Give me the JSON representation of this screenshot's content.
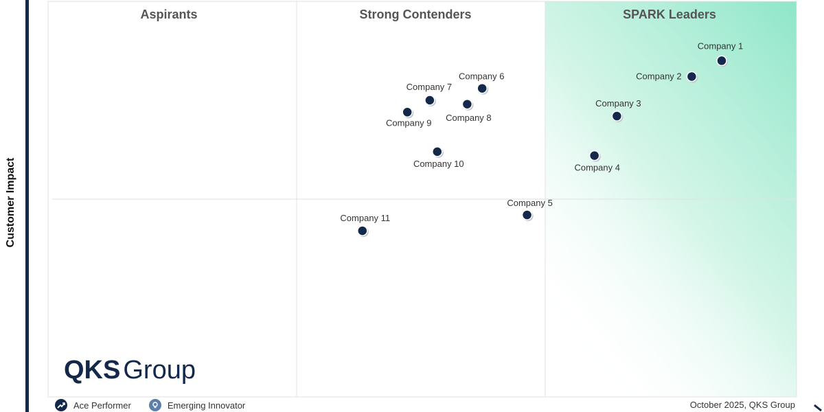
{
  "y_axis_label": "Customer Impact",
  "quadrants": [
    "Aspirants",
    "Strong Contenders",
    "SPARK Leaders"
  ],
  "logo": {
    "part1": "QKS",
    "part2": "Group"
  },
  "legend": [
    {
      "label": "Ace Performer",
      "icon": "trend-up-icon"
    },
    {
      "label": "Emerging Innovator",
      "icon": "lightbulb-icon"
    }
  ],
  "footer": "October 2025, QKS Group",
  "colors": {
    "dot": "#14284b",
    "leader_gradient": "#9fe8cf",
    "axis_bar": "#14284b"
  },
  "chart_data": {
    "type": "scatter",
    "ylabel": "Customer Impact",
    "grid": true,
    "points": [
      {
        "label": "Company 1",
        "x": 0.9,
        "y": 0.85
      },
      {
        "label": "Company 2",
        "x": 0.86,
        "y": 0.81
      },
      {
        "label": "Company 3",
        "x": 0.76,
        "y": 0.71
      },
      {
        "label": "Company 4",
        "x": 0.73,
        "y": 0.61
      },
      {
        "label": "Company 5",
        "x": 0.64,
        "y": 0.46
      },
      {
        "label": "Company 6",
        "x": 0.58,
        "y": 0.78
      },
      {
        "label": "Company 7",
        "x": 0.51,
        "y": 0.75
      },
      {
        "label": "Company 8",
        "x": 0.56,
        "y": 0.74
      },
      {
        "label": "Company 9",
        "x": 0.48,
        "y": 0.72
      },
      {
        "label": "Company 10",
        "x": 0.52,
        "y": 0.62
      },
      {
        "label": "Company 11",
        "x": 0.42,
        "y": 0.42
      }
    ]
  }
}
